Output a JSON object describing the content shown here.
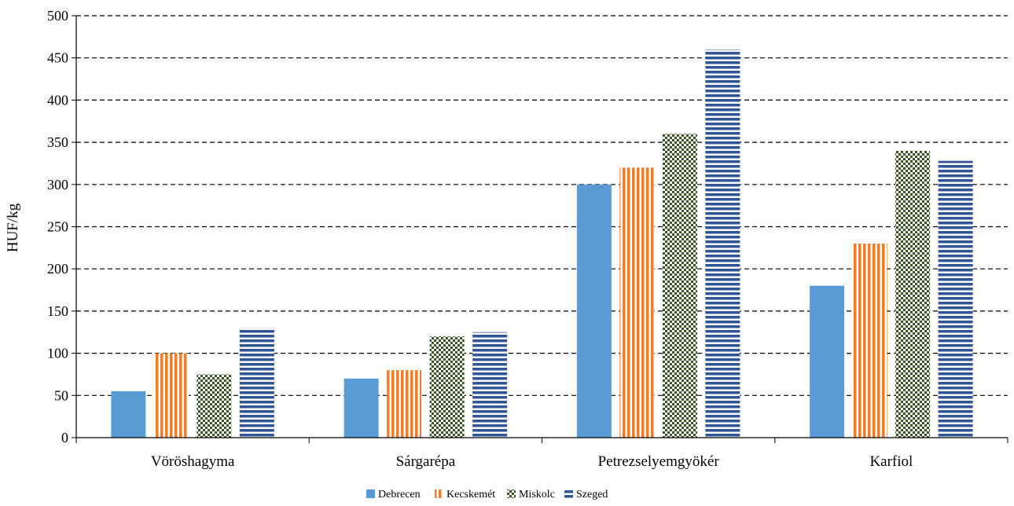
{
  "chart_data": {
    "type": "bar",
    "title": "",
    "xlabel": "",
    "ylabel": "HUF/kg",
    "ylim": [
      0,
      500
    ],
    "y_ticks": [
      0,
      50,
      100,
      150,
      200,
      250,
      300,
      350,
      400,
      450,
      500
    ],
    "grid": "horizontal dashed",
    "legend_position": "bottom",
    "categories": [
      "Vöröshagyma",
      "Sárgarépa",
      "Petrezselyemgyökér",
      "Karfiol"
    ],
    "series": [
      {
        "name": "Debrecen",
        "values": [
          55,
          70,
          300,
          180
        ],
        "color": "#5b9bd5",
        "pattern": "solid"
      },
      {
        "name": "Kecskemét",
        "values": [
          100,
          80,
          320,
          230
        ],
        "color": "#ed7d31",
        "pattern": "vertical-stripes"
      },
      {
        "name": "Miskolc",
        "values": [
          75,
          120,
          360,
          340
        ],
        "color": "#375623",
        "pattern": "checkerboard"
      },
      {
        "name": "Szeged",
        "values": [
          130,
          125,
          460,
          328
        ],
        "color": "#2f5597",
        "pattern": "horizontal-stripes"
      }
    ]
  }
}
